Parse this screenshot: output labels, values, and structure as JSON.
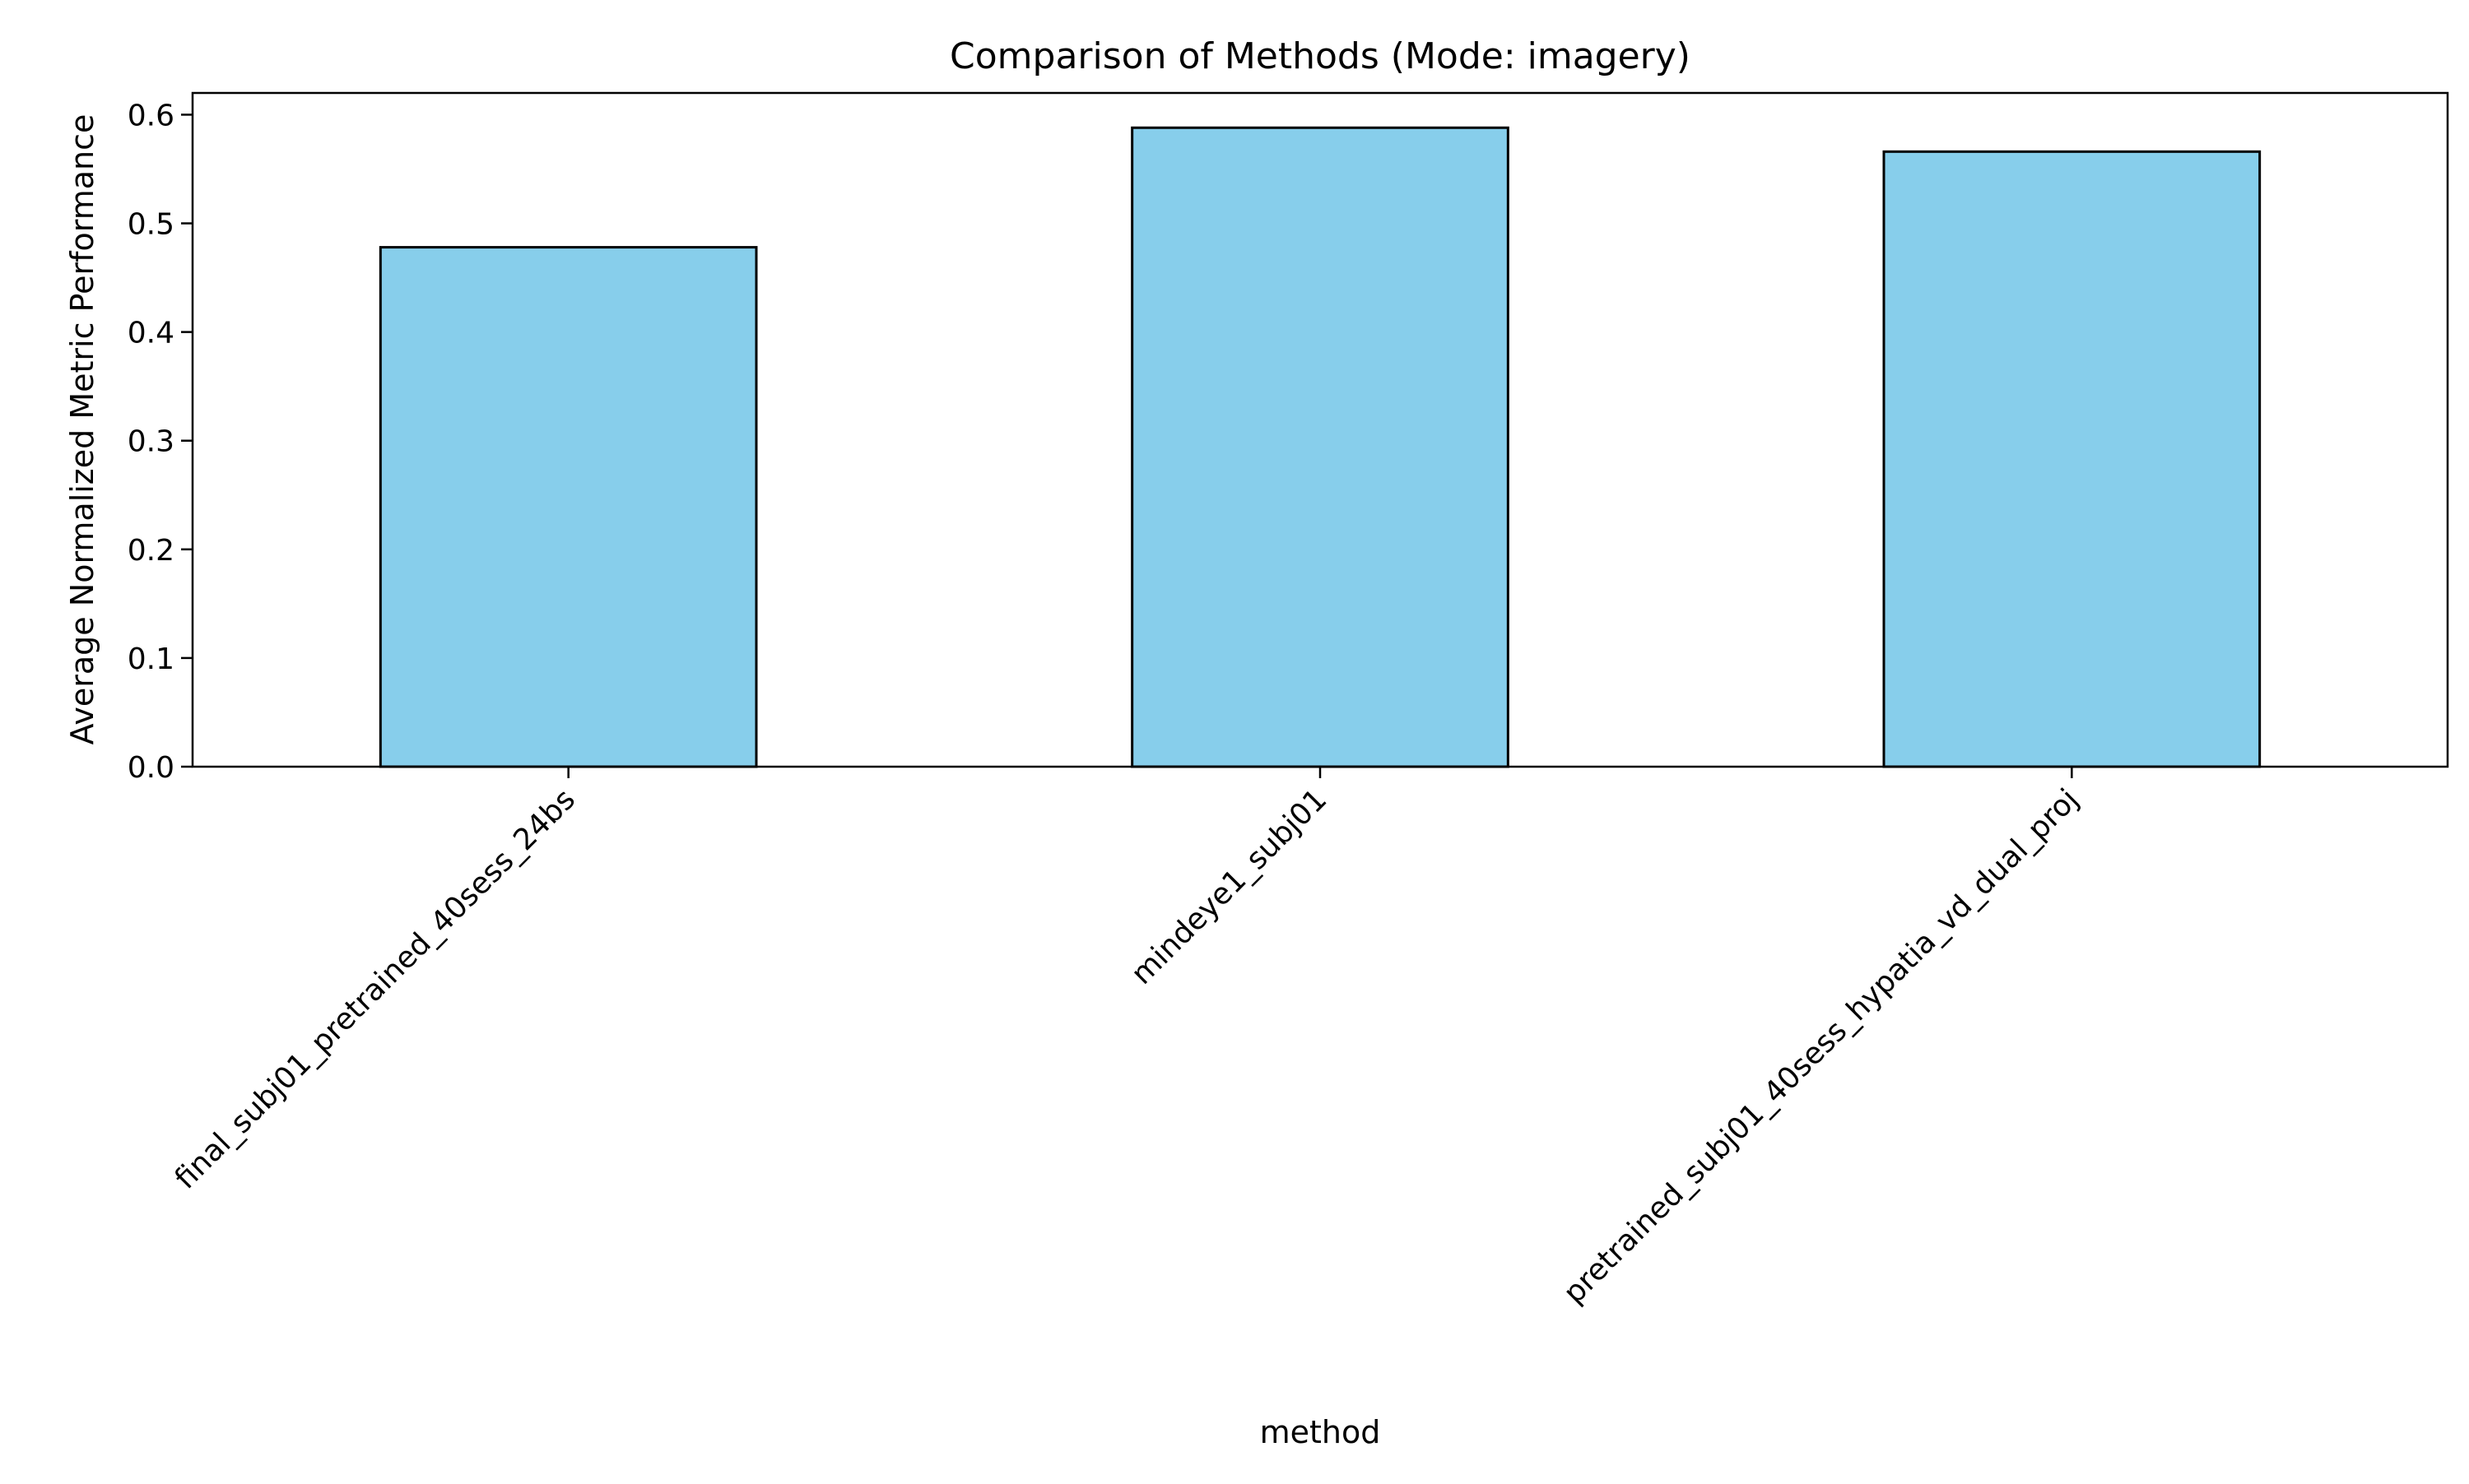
{
  "chart_data": {
    "type": "bar",
    "title": "Comparison of Methods (Mode: imagery)",
    "xlabel": "method",
    "ylabel": "Average Normalized Metric Performance",
    "categories": [
      "final_subj01_pretrained_40sess_24bs",
      "mindeye1_subj01",
      "pretrained_subj01_40sess_hypatia_vd_dual_proj"
    ],
    "values": [
      0.478,
      0.588,
      0.566
    ],
    "ylim": [
      0,
      0.62
    ],
    "yticks": [
      0.0,
      0.1,
      0.2,
      0.3,
      0.4,
      0.5,
      0.6
    ],
    "ytick_labels": [
      "0.0",
      "0.1",
      "0.2",
      "0.3",
      "0.4",
      "0.5",
      "0.6"
    ],
    "grid": false,
    "legend": "none",
    "colors": {
      "bar_fill": "#87ceeb",
      "bar_edge": "#000000",
      "axes": "#000000"
    }
  }
}
